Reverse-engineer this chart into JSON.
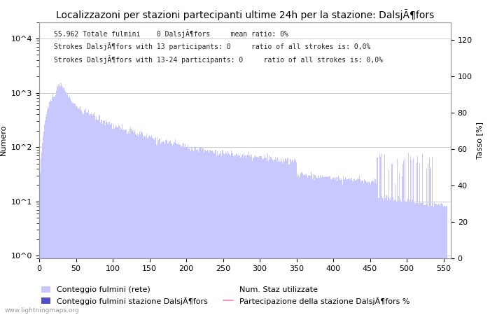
{
  "title": "Localizzazoni per stazioni partecipanti ultime 24h per la stazione: DalsjÃ¶fors",
  "ylabel_left": "Numero",
  "ylabel_right": "Tasso [%]",
  "annotation_line1": "55.962 Totale fulmini    0 DalsjÃ¶fors     mean ratio: 0%",
  "annotation_line2": "Strokes DalsjÃ¶fors with 13 participants: 0     ratio of all strokes is: 0,0%",
  "annotation_line3": "Strokes DalsjÃ¶fors with 13-24 participants: 0     ratio of all strokes is: 0,0%",
  "legend_label1": "Conteggio fulmini (rete)",
  "legend_label2": "Conteggio fulmini stazione DalsjÃ¶fors",
  "legend_label3": "Num. Staz utilizzate",
  "legend_label4": "Partecipazione della stazione DalsjÃ¶fors %",
  "bar_color_network": "#c8c8ff",
  "bar_color_station": "#5050c8",
  "line_color_participation": "#ff80c0",
  "watermark": "www.lightningmaps.org",
  "background_color": "#ffffff",
  "plot_bg_color": "#ffffff",
  "grid_color": "#cccccc",
  "title_fontsize": 10,
  "annotation_fontsize": 7,
  "axis_label_fontsize": 8,
  "tick_fontsize": 8,
  "legend_fontsize": 8
}
